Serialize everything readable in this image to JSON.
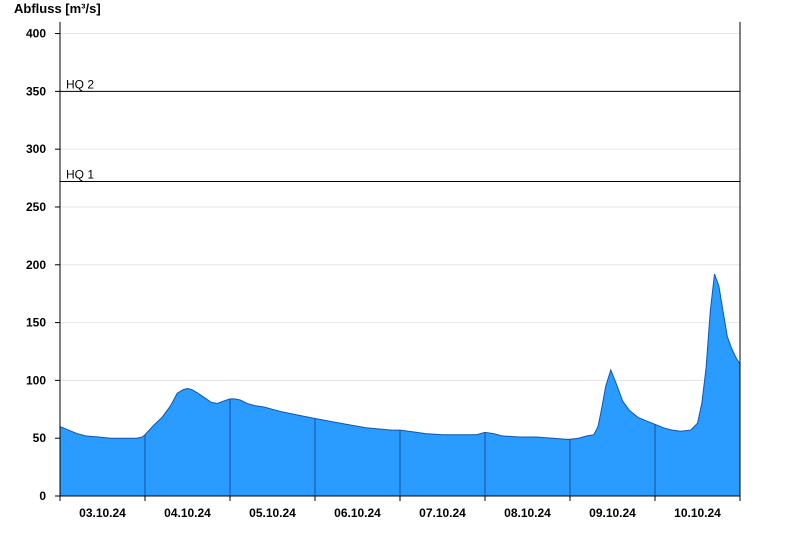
{
  "chart_data": {
    "type": "area",
    "ylabel": "Abfluss [m³/s]",
    "ylim": [
      0,
      410
    ],
    "yticks": [
      0,
      50,
      100,
      150,
      200,
      250,
      300,
      350,
      400
    ],
    "grid": true,
    "x_start": "02.10.24",
    "x_end": "11.10.24",
    "x_tick_labels": [
      "03.10.24",
      "04.10.24",
      "05.10.24",
      "06.10.24",
      "07.10.24",
      "08.10.24",
      "09.10.24",
      "10.10.24"
    ],
    "reference_lines": [
      {
        "label": "HQ 2",
        "value": 350
      },
      {
        "label": "HQ 1",
        "value": 272
      }
    ],
    "series": [
      {
        "color": "#2a9bff",
        "x": [
          0.0,
          0.1,
          0.2,
          0.3,
          0.45,
          0.6,
          0.75,
          0.9,
          0.97,
          1.0,
          1.1,
          1.2,
          1.3,
          1.38,
          1.45,
          1.5,
          1.55,
          1.62,
          1.7,
          1.78,
          1.85,
          1.92,
          2.0,
          2.05,
          2.12,
          2.2,
          2.3,
          2.4,
          2.5,
          2.6,
          2.8,
          3.0,
          3.3,
          3.6,
          3.9,
          4.0,
          4.2,
          4.3,
          4.5,
          4.7,
          4.9,
          5.0,
          5.1,
          5.2,
          5.4,
          5.6,
          5.8,
          5.95,
          6.0,
          6.1,
          6.2,
          6.28,
          6.33,
          6.37,
          6.42,
          6.48,
          6.55,
          6.62,
          6.7,
          6.8,
          6.9,
          7.0,
          7.1,
          7.2,
          7.3,
          7.42,
          7.5,
          7.55,
          7.6,
          7.65,
          7.7,
          7.75,
          7.8,
          7.85,
          7.9,
          7.95,
          8.0
        ],
        "y": [
          60,
          57,
          54,
          52,
          51,
          50,
          50,
          50,
          51,
          53,
          61,
          68,
          78,
          89,
          92,
          93,
          92,
          89,
          85,
          81,
          80,
          82,
          84,
          84,
          83,
          80,
          78,
          77,
          75,
          73,
          70,
          67,
          63,
          59,
          57,
          57,
          55,
          54,
          53,
          53,
          53,
          55,
          54,
          52,
          51,
          51,
          50,
          49,
          49,
          50,
          52,
          53,
          60,
          75,
          95,
          109,
          96,
          82,
          74,
          68,
          65,
          62,
          59,
          57,
          56,
          57,
          63,
          80,
          110,
          160,
          192,
          182,
          160,
          138,
          128,
          120,
          114
        ]
      }
    ]
  }
}
